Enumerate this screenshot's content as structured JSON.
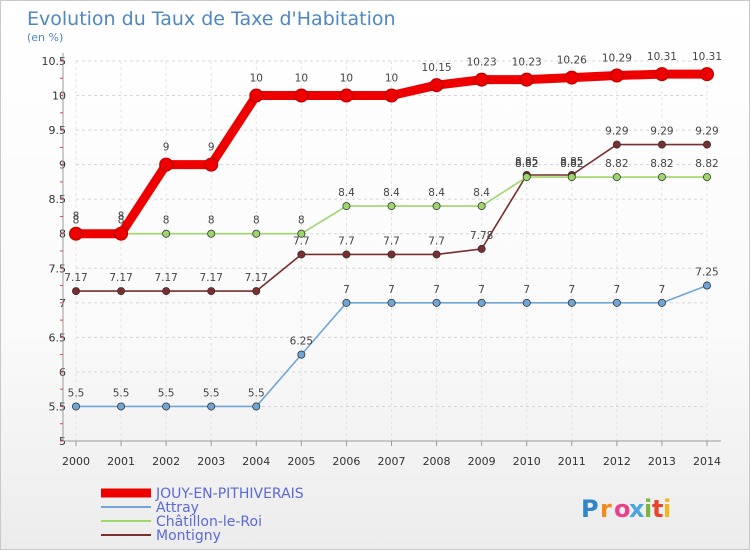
{
  "chart_data": {
    "type": "line",
    "title": "Evolution du Taux de Taxe d'Habitation",
    "subtitle": "(en %)",
    "x": [
      2000,
      2001,
      2002,
      2003,
      2004,
      2005,
      2006,
      2007,
      2008,
      2009,
      2010,
      2011,
      2012,
      2013,
      2014
    ],
    "ylim": [
      5,
      10.5
    ],
    "yticks": [
      "5",
      "5.5",
      "6",
      "6.5",
      "7",
      "7.5",
      "8",
      "8.5",
      "9",
      "9.5",
      "10",
      "10.5"
    ],
    "grid": "horizontal dashed",
    "legend_position": "bottom-left",
    "series": [
      {
        "name": "JOUY-EN-PITHIVERAIS",
        "color": "#ee0000",
        "values": [
          8,
          8,
          9,
          9,
          10,
          10,
          10,
          10,
          10.15,
          10.23,
          10.23,
          10.26,
          10.29,
          10.31,
          10.31
        ],
        "labels": [
          "8",
          "8",
          "9",
          "9",
          "10",
          "10",
          "10",
          "10",
          "10.15",
          "10.23",
          "10.23",
          "10.26",
          "10.29",
          "10.31",
          "10.31"
        ]
      },
      {
        "name": "Attray",
        "color": "#6fa6d6",
        "values": [
          5.5,
          5.5,
          5.5,
          5.5,
          5.5,
          6.25,
          7,
          7,
          7,
          7,
          7,
          7,
          7,
          7,
          7.25
        ],
        "labels": [
          "5.5",
          "5.5",
          "5.5",
          "5.5",
          "5.5",
          "6.25",
          "7",
          "7",
          "7",
          "7",
          "7",
          "7",
          "7",
          "7",
          "7.25"
        ]
      },
      {
        "name": "Châtillon-le-Roi",
        "color": "#9dd66a",
        "values": [
          8,
          8,
          8,
          8,
          8,
          8,
          8.4,
          8.4,
          8.4,
          8.4,
          8.82,
          8.82,
          8.82,
          8.82,
          8.82
        ],
        "labels": [
          "8",
          "8",
          "8",
          "8",
          "8",
          "8",
          "8.4",
          "8.4",
          "8.4",
          "8.4",
          "8.82",
          "8.82",
          "8.82",
          "8.82",
          "8.82"
        ]
      },
      {
        "name": "Montigny",
        "color": "#7a2e2e",
        "values": [
          7.17,
          7.17,
          7.17,
          7.17,
          7.17,
          7.7,
          7.7,
          7.7,
          7.7,
          7.78,
          8.85,
          8.85,
          9.29,
          9.29,
          9.29
        ],
        "labels": [
          "7.17",
          "7.17",
          "7.17",
          "7.17",
          "7.17",
          "7.7",
          "7.7",
          "7.7",
          "7.7",
          "7.78",
          "8.85",
          "8.85",
          "9.29",
          "9.29",
          "9.29"
        ]
      }
    ]
  },
  "branding": {
    "logo_text": "Proxiti",
    "letter_colors": [
      "#2e86c8",
      "#f08a1c",
      "#ea3f8a",
      "#4aa6dc",
      "#7cb542",
      "#e8432e",
      "#f4b41a"
    ]
  }
}
